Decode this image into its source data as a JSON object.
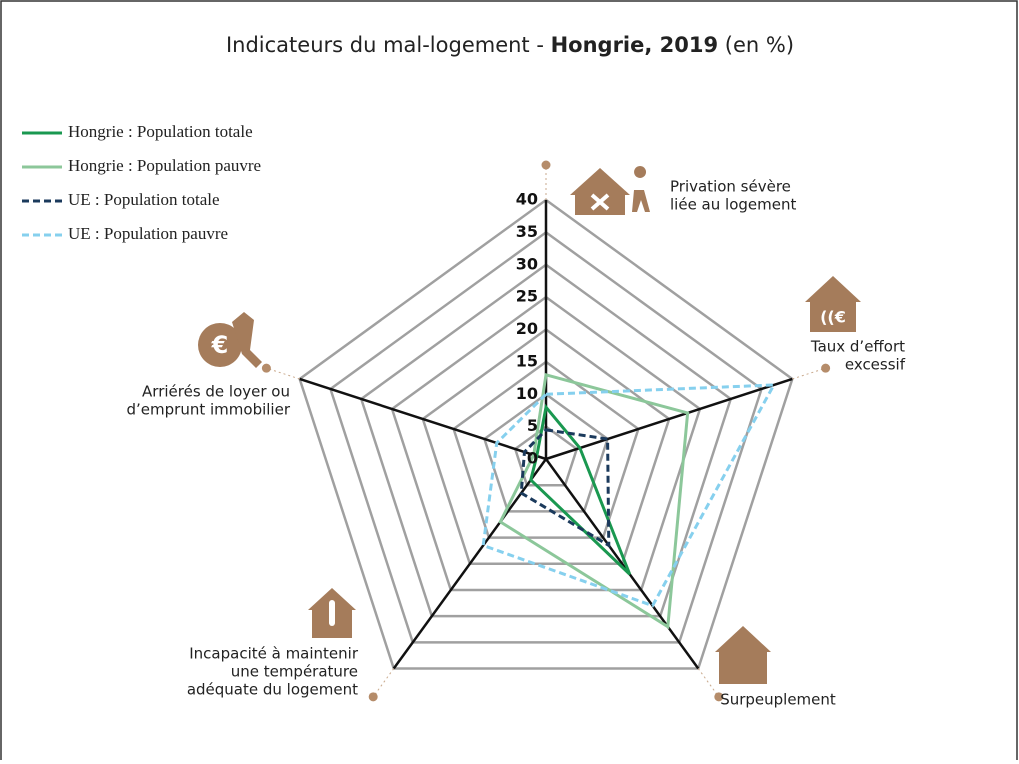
{
  "chart_data": {
    "type": "radar",
    "title": {
      "prefix": "Indicateurs du mal-logement - ",
      "bold": "Hongrie, 2019",
      "suffix": " (en %)"
    },
    "categories": [
      [
        "Privation sévère",
        "liée au logement"
      ],
      [
        "Taux d’effort",
        "excessif"
      ],
      [
        "Surpeuplement"
      ],
      [
        "Incapacité à maintenir",
        "une température",
        "adéquate du logement"
      ],
      [
        "Arriérés de loyer ou",
        "d’emprunt immobilier"
      ]
    ],
    "series": [
      {
        "name": "Hongrie : Population totale",
        "color": "#1a9850",
        "dash": false,
        "values": [
          8,
          5.5,
          22,
          4,
          1.5
        ]
      },
      {
        "name": "Hongrie : Population pauvre",
        "color": "#8cc79a",
        "dash": false,
        "values": [
          13,
          23,
          32,
          12,
          2
        ]
      },
      {
        "name": "UE : Population totale",
        "color": "#1b3a5c",
        "dash": true,
        "values": [
          4.5,
          10,
          16.5,
          6.5,
          3.5
        ]
      },
      {
        "name": "UE : Population pauvre",
        "color": "#86d0ee",
        "dash": true,
        "values": [
          10,
          37,
          28,
          16.5,
          8
        ]
      }
    ],
    "ylim": [
      0,
      40
    ],
    "yticks": [
      0,
      5,
      10,
      15,
      20,
      25,
      30,
      35,
      40
    ],
    "grid": true,
    "legend": "top-left"
  }
}
